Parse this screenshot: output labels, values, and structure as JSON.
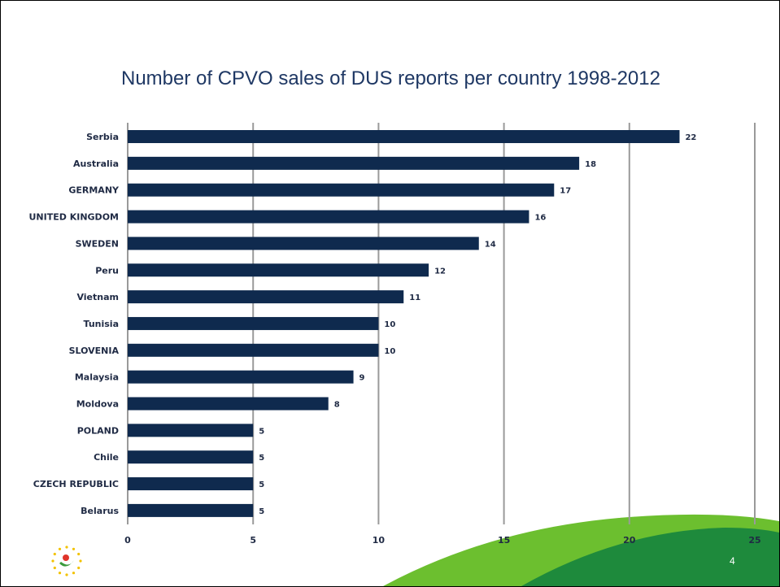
{
  "slide": {
    "title": "Number of CPVO sales of DUS reports per country 1998-2012",
    "page_number": "4"
  },
  "colors": {
    "bar": "#0f2a4e",
    "gridline": "#9a9a9a",
    "title": "#1f3864",
    "green_dark": "#1e8a3c",
    "green_light": "#6cbf2f"
  },
  "icons": {
    "logo": "cpvo-logo-icon"
  },
  "chart_data": {
    "type": "bar",
    "orientation": "horizontal",
    "title": "Number of CPVO sales of DUS reports per country 1998-2012",
    "categories": [
      "Serbia",
      "Australia",
      "GERMANY",
      "UNITED KINGDOM",
      "SWEDEN",
      "Peru",
      "Vietnam",
      "Tunisia",
      "SLOVENIA",
      "Malaysia",
      "Moldova",
      "POLAND",
      "Chile",
      "CZECH REPUBLIC",
      "Belarus"
    ],
    "values": [
      22,
      18,
      17,
      16,
      14,
      12,
      11,
      10,
      10,
      9,
      8,
      5,
      5,
      5,
      5
    ],
    "xlim": [
      0,
      25
    ],
    "xticks": [
      0,
      5,
      10,
      15,
      20,
      25
    ],
    "grid": true,
    "legend": "none",
    "data_labels": true
  }
}
